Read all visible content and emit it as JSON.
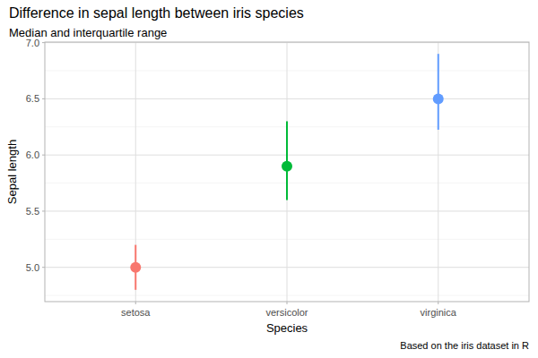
{
  "chart_data": {
    "type": "pointrange",
    "title": "Difference in sepal length between iris species",
    "subtitle": "Median and interquartile range",
    "x_label": "Species",
    "y_label": "Sepal length",
    "caption": "Based on the iris dataset in R",
    "categories": [
      "setosa",
      "versicolor",
      "virginica"
    ],
    "values": [
      5.0,
      5.9,
      6.5
    ],
    "lower": [
      4.8,
      5.6,
      6.225
    ],
    "upper": [
      5.2,
      6.3,
      6.9
    ],
    "colors": [
      "#F8766D",
      "#00BA38",
      "#619CFF"
    ],
    "ylim": [
      4.695,
      7.005
    ],
    "yticks": [
      {
        "value": 5,
        "label": "5.0"
      },
      5.5,
      {
        "value": 6,
        "label": "6.0"
      },
      6.5,
      {
        "value": 7,
        "label": "7.0"
      }
    ],
    "grid": true
  }
}
